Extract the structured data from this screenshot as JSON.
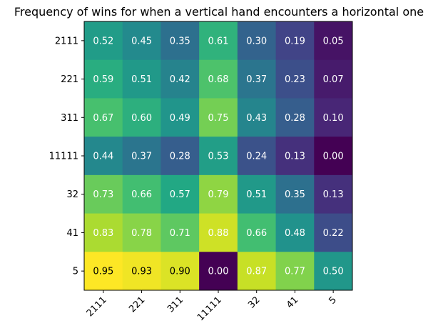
{
  "chart_data": {
    "type": "heatmap",
    "title": "Frequency of wins for when a vertical hand encounters a horizontal one",
    "xlabel": "",
    "ylabel": "",
    "x_categories": [
      "2111",
      "221",
      "311",
      "11111",
      "32",
      "41",
      "5"
    ],
    "y_categories": [
      "2111",
      "221",
      "311",
      "11111",
      "32",
      "41",
      "5"
    ],
    "values": [
      [
        0.52,
        0.45,
        0.35,
        0.61,
        0.3,
        0.19,
        0.05
      ],
      [
        0.59,
        0.51,
        0.42,
        0.68,
        0.37,
        0.23,
        0.07
      ],
      [
        0.67,
        0.6,
        0.49,
        0.75,
        0.43,
        0.28,
        0.1
      ],
      [
        0.44,
        0.37,
        0.28,
        0.53,
        0.24,
        0.13,
        0.0
      ],
      [
        0.73,
        0.66,
        0.57,
        0.79,
        0.51,
        0.35,
        0.13
      ],
      [
        0.83,
        0.78,
        0.71,
        0.88,
        0.66,
        0.48,
        0.22
      ],
      [
        0.95,
        0.93,
        0.9,
        0.0,
        0.87,
        0.77,
        0.5
      ]
    ],
    "value_labels": [
      [
        "0.52",
        "0.45",
        "0.35",
        "0.61",
        "0.30",
        "0.19",
        "0.05"
      ],
      [
        "0.59",
        "0.51",
        "0.42",
        "0.68",
        "0.37",
        "0.23",
        "0.07"
      ],
      [
        "0.67",
        "0.60",
        "0.49",
        "0.75",
        "0.43",
        "0.28",
        "0.10"
      ],
      [
        "0.44",
        "0.37",
        "0.28",
        "0.53",
        "0.24",
        "0.13",
        "0.00"
      ],
      [
        "0.73",
        "0.66",
        "0.57",
        "0.79",
        "0.51",
        "0.35",
        "0.13"
      ],
      [
        "0.83",
        "0.78",
        "0.71",
        "0.88",
        "0.66",
        "0.48",
        "0.22"
      ],
      [
        "0.95",
        "0.93",
        "0.90",
        "0.00",
        "0.87",
        "0.77",
        "0.50"
      ]
    ],
    "colormap": "viridis",
    "value_range": [
      0,
      0.95
    ],
    "x_tick_rotation": "45 degrees",
    "grid": false,
    "legend": "none"
  }
}
